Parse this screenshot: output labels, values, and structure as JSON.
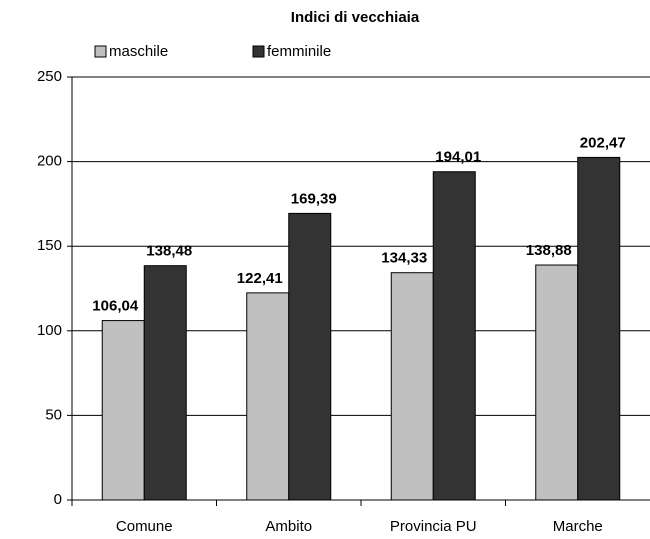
{
  "chart_data": {
    "type": "bar",
    "title": "Indici di vecchiaia",
    "categories": [
      "Comune",
      "Ambito",
      "Provincia PU",
      "Marche"
    ],
    "series": [
      {
        "name": "maschile",
        "color": "#c0c0c0",
        "values": [
          106.04,
          122.41,
          134.33,
          138.88
        ],
        "value_labels": [
          "106,04",
          "122,41",
          "134,33",
          "138,88"
        ]
      },
      {
        "name": "femminile",
        "color": "#333333",
        "values": [
          138.48,
          169.39,
          194.01,
          202.47
        ],
        "value_labels": [
          "138,48",
          "169,39",
          "194,01",
          "202,47"
        ]
      }
    ],
    "ylim": [
      0,
      250
    ],
    "yticks": [
      0,
      50,
      100,
      150,
      200,
      250
    ],
    "grid": true,
    "legend": "top"
  }
}
